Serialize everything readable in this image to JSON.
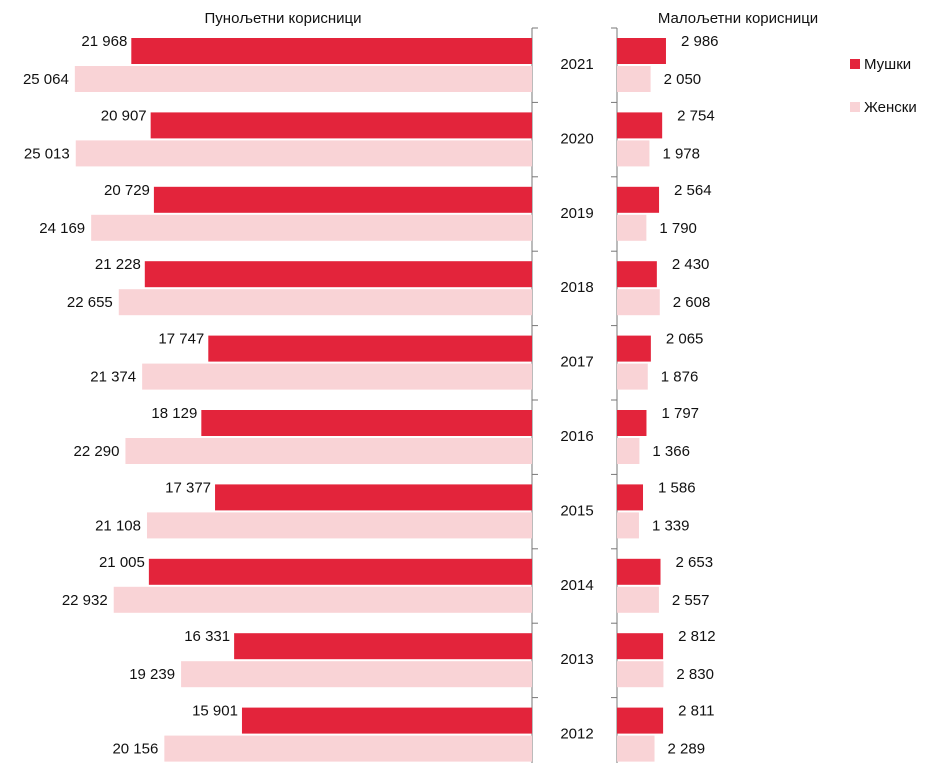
{
  "chart_data": {
    "type": "bar",
    "categories": [
      "2021",
      "2020",
      "2019",
      "2018",
      "2017",
      "2016",
      "2015",
      "2014",
      "2013",
      "2012"
    ],
    "series": [
      {
        "name": "Мушки",
        "color": "#e3243b"
      },
      {
        "name": "Женски",
        "color": "#f9d3d6"
      }
    ],
    "panels": [
      {
        "title": "Пунољетни корисници",
        "direction": "left",
        "xlim": [
          0,
          25000
        ],
        "series": [
          {
            "values": [
              21968,
              20907,
              20729,
              21228,
              17747,
              18129,
              17377,
              21005,
              16331,
              15901
            ],
            "value_labels": [
              "21 968",
              "20 907",
              "20 729",
              "21 228",
              "17 747",
              "18 129",
              "17 377",
              "21 005",
              "16 331",
              "15 901"
            ]
          },
          {
            "values": [
              25064,
              25013,
              24169,
              22655,
              21374,
              22290,
              21108,
              22932,
              19239,
              20156
            ],
            "value_labels": [
              "25 064",
              "25 013",
              "24 169",
              "22 655",
              "21 374",
              "22 290",
              "21 108",
              "22 932",
              "19 239",
              "20 156"
            ]
          }
        ]
      },
      {
        "title": "Малољетни корисници",
        "direction": "right",
        "xlim": [
          0,
          3000
        ],
        "series": [
          {
            "values": [
              2986,
              2754,
              2564,
              2430,
              2065,
              1797,
              1586,
              2653,
              2812,
              2811
            ],
            "value_labels": [
              "2 986",
              "2 754",
              "2 564",
              "2 430",
              "2 065",
              "1 797",
              "1 586",
              "2 653",
              "2 812",
              "2 811"
            ]
          },
          {
            "values": [
              2050,
              1978,
              1790,
              2608,
              1876,
              1366,
              1339,
              2557,
              2830,
              2289
            ],
            "value_labels": [
              "2 050",
              "1 978",
              "1 790",
              "2 608",
              "1 876",
              "1 366",
              "1 339",
              "2 557",
              "2 830",
              "2 289"
            ]
          }
        ]
      }
    ]
  }
}
